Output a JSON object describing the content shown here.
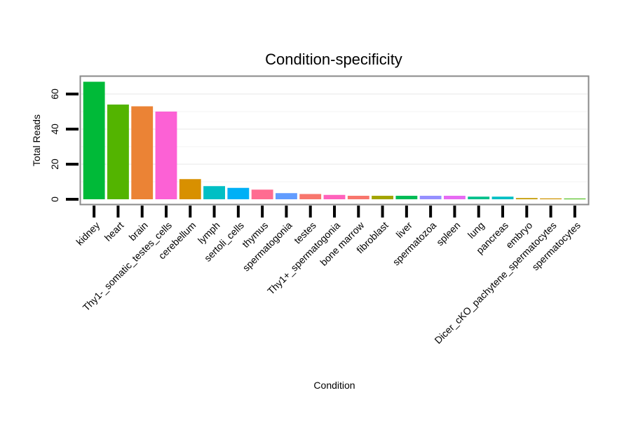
{
  "chart_data": {
    "type": "bar",
    "title": "Condition-specificity",
    "xlabel": "Condition",
    "ylabel": "Total Reads",
    "ylim": [
      0,
      70
    ],
    "yticks": [
      0,
      20,
      40,
      60
    ],
    "grid": true,
    "categories": [
      "kidney",
      "heart",
      "brain",
      "Thy1-_somatic_testes_cells",
      "cerebellum",
      "lymph",
      "sertoli_cells",
      "thymus",
      "spermatogonia",
      "testes",
      "Thy1+_spermatogonia",
      "bone marrow",
      "fibroblast",
      "liver",
      "spermatozoa",
      "spleen",
      "lung",
      "pancreas",
      "embryo",
      "Dicer_cKO_pachytene_spermatocytes",
      "spermatocytes"
    ],
    "values": [
      67,
      54,
      53,
      50,
      11.5,
      7.5,
      6.5,
      5.5,
      3.5,
      3,
      2.5,
      2,
      2,
      2,
      2,
      2,
      1.5,
      1.5,
      0.7,
      0.5,
      0.4
    ],
    "colors": [
      "#00BA38",
      "#53B400",
      "#EB8335",
      "#FC61D5",
      "#D89000",
      "#00BFC4",
      "#00B0F6",
      "#FF6C91",
      "#619CFF",
      "#F8766D",
      "#FF62BC",
      "#F8766D",
      "#A3A500",
      "#00BC56",
      "#9590FF",
      "#E76BF3",
      "#00C08B",
      "#00BFC4",
      "#C49A00",
      "#CF9400",
      "#39B600"
    ]
  }
}
